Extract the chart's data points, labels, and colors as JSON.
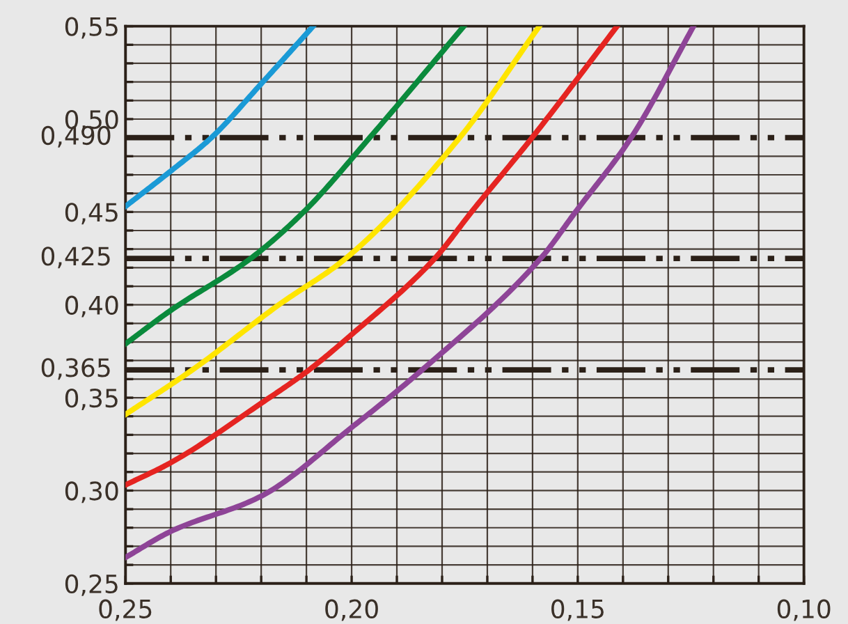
{
  "chart_data": {
    "type": "line",
    "xlim": [
      0.25,
      0.1
    ],
    "ylim": [
      0.25,
      0.55
    ],
    "xticks": [
      {
        "value": 0.25,
        "label": "0,25"
      },
      {
        "value": 0.24,
        "label": null
      },
      {
        "value": 0.23,
        "label": null
      },
      {
        "value": 0.22,
        "label": null
      },
      {
        "value": 0.21,
        "label": null
      },
      {
        "value": 0.2,
        "label": "0,20"
      },
      {
        "value": 0.19,
        "label": null
      },
      {
        "value": 0.18,
        "label": null
      },
      {
        "value": 0.17,
        "label": null
      },
      {
        "value": 0.16,
        "label": null
      },
      {
        "value": 0.15,
        "label": "0,15"
      },
      {
        "value": 0.14,
        "label": null
      },
      {
        "value": 0.13,
        "label": null
      },
      {
        "value": 0.12,
        "label": null
      },
      {
        "value": 0.11,
        "label": null
      },
      {
        "value": 0.1,
        "label": "0,10"
      }
    ],
    "yticks": [
      {
        "value": 0.25,
        "label": "0,25"
      },
      {
        "value": 0.26,
        "label": null
      },
      {
        "value": 0.27,
        "label": null
      },
      {
        "value": 0.28,
        "label": null
      },
      {
        "value": 0.29,
        "label": null
      },
      {
        "value": 0.3,
        "label": "0,30"
      },
      {
        "value": 0.31,
        "label": null
      },
      {
        "value": 0.32,
        "label": null
      },
      {
        "value": 0.33,
        "label": null
      },
      {
        "value": 0.34,
        "label": null
      },
      {
        "value": 0.35,
        "label": "0,35"
      },
      {
        "value": 0.36,
        "label": null
      },
      {
        "value": 0.37,
        "label": null
      },
      {
        "value": 0.38,
        "label": null
      },
      {
        "value": 0.39,
        "label": null
      },
      {
        "value": 0.4,
        "label": "0,40"
      },
      {
        "value": 0.41,
        "label": null
      },
      {
        "value": 0.42,
        "label": null
      },
      {
        "value": 0.43,
        "label": null
      },
      {
        "value": 0.44,
        "label": null
      },
      {
        "value": 0.45,
        "label": "0,45"
      },
      {
        "value": 0.46,
        "label": null
      },
      {
        "value": 0.47,
        "label": null
      },
      {
        "value": 0.48,
        "label": null
      },
      {
        "value": 0.5,
        "label": "0,50"
      },
      {
        "value": 0.51,
        "label": null
      },
      {
        "value": 0.52,
        "label": null
      },
      {
        "value": 0.53,
        "label": null
      },
      {
        "value": 0.54,
        "label": null
      },
      {
        "value": 0.55,
        "label": "0,55"
      }
    ],
    "grid": true,
    "marker": "none",
    "line_style": "solid",
    "series": [
      {
        "color": "#1a9ad6",
        "x": [
          0.25,
          0.24,
          0.231,
          0.22,
          0.2085
        ],
        "values": [
          0.453,
          0.472,
          0.49,
          0.519,
          0.55
        ]
      },
      {
        "color": "#0a8a3c",
        "x": [
          0.25,
          0.24,
          0.2223,
          0.2106,
          0.196,
          0.1752
        ],
        "values": [
          0.379,
          0.397,
          0.425,
          0.45,
          0.49,
          0.55
        ]
      },
      {
        "color": "#ffe500",
        "x": [
          0.25,
          0.2352,
          0.2161,
          0.2013,
          0.1761,
          0.1585
        ],
        "values": [
          0.341,
          0.365,
          0.4,
          0.425,
          0.49,
          0.55
        ]
      },
      {
        "color": "#e52421",
        "x": [
          0.25,
          0.24,
          0.22,
          0.2094,
          0.2,
          0.1816,
          0.1735,
          0.1601,
          0.1413
        ],
        "values": [
          0.303,
          0.315,
          0.347,
          0.365,
          0.384,
          0.425,
          0.45,
          0.49,
          0.55
        ]
      },
      {
        "color": "#8e4497",
        "x": [
          0.25,
          0.24,
          0.22,
          0.2,
          0.1844,
          0.1582,
          0.1505,
          0.1382,
          0.1244
        ],
        "values": [
          0.264,
          0.278,
          0.297,
          0.334,
          0.365,
          0.425,
          0.45,
          0.49,
          0.55
        ]
      }
    ],
    "ref_lines": [
      {
        "axis": "y",
        "value": 0.365,
        "label": "0,365",
        "color": "#2b2018",
        "line_style": "dashed"
      },
      {
        "axis": "y",
        "value": 0.425,
        "label": "0,425",
        "color": "#2b2018",
        "line_style": "dashed"
      },
      {
        "axis": "y",
        "value": 0.49,
        "label": "0,490",
        "color": "#2b2018",
        "line_style": "dashed"
      }
    ]
  }
}
